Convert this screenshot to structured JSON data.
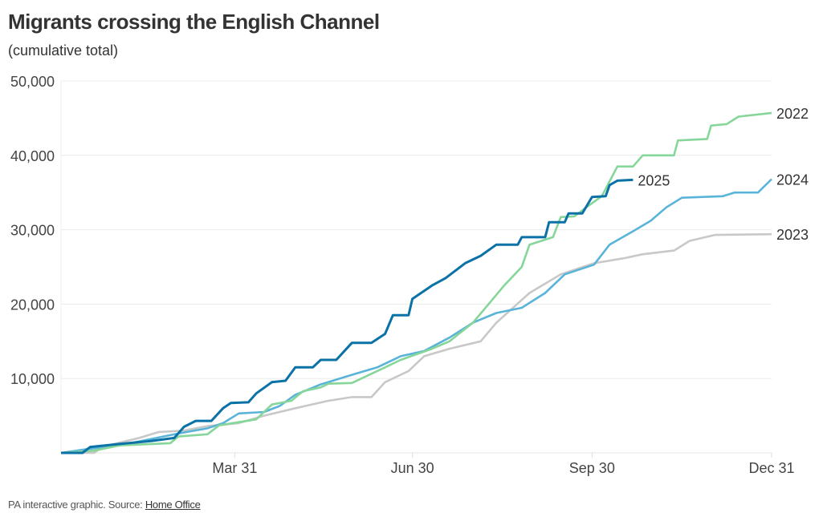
{
  "header": {
    "title": "Migrants crossing the English Channel",
    "subtitle": "(cumulative total)"
  },
  "footer": {
    "text": "PA interactive graphic. Source: ",
    "link": "Home Office"
  },
  "chart_data": {
    "type": "line",
    "ylim": [
      0,
      50000
    ],
    "xlim": [
      "01-01",
      "12-31"
    ],
    "grid": true,
    "yticks": [
      {
        "v": 10000,
        "label": "10,000"
      },
      {
        "v": 20000,
        "label": "20,000"
      },
      {
        "v": 30000,
        "label": "30,000"
      },
      {
        "v": 40000,
        "label": "40,000"
      },
      {
        "v": 50000,
        "label": "50,000"
      }
    ],
    "xticks": [
      {
        "v": "03-31",
        "label": "Mar 31"
      },
      {
        "v": "06-30",
        "label": "Jun 30"
      },
      {
        "v": "09-30",
        "label": "Sep 30"
      },
      {
        "v": "12-31",
        "label": "Dec 31"
      }
    ],
    "series": [
      {
        "name": "2023",
        "color": "#c8c8c8",
        "points": [
          [
            "01-01",
            0
          ],
          [
            "01-18",
            0
          ],
          [
            "01-22",
            800
          ],
          [
            "02-10",
            2000
          ],
          [
            "02-20",
            2800
          ],
          [
            "03-05",
            3000
          ],
          [
            "03-17",
            3600
          ],
          [
            "04-02",
            4000
          ],
          [
            "04-15",
            5000
          ],
          [
            "05-01",
            6000
          ],
          [
            "05-18",
            7000
          ],
          [
            "05-30",
            7500
          ],
          [
            "06-09",
            7500
          ],
          [
            "06-16",
            9500
          ],
          [
            "06-28",
            11000
          ],
          [
            "07-06",
            13000
          ],
          [
            "07-19",
            14000
          ],
          [
            "08-04",
            15000
          ],
          [
            "08-12",
            17500
          ],
          [
            "08-29",
            21500
          ],
          [
            "09-14",
            24000
          ],
          [
            "10-01",
            25500
          ],
          [
            "10-17",
            26200
          ],
          [
            "10-26",
            26700
          ],
          [
            "11-11",
            27200
          ],
          [
            "11-19",
            28500
          ],
          [
            "12-02",
            29300
          ],
          [
            "12-31",
            29400
          ]
        ]
      },
      {
        "name": "2024",
        "color": "#5ab4d9",
        "points": [
          [
            "01-01",
            0
          ],
          [
            "01-14",
            500
          ],
          [
            "01-31",
            1000
          ],
          [
            "03-02",
            2600
          ],
          [
            "03-17",
            3300
          ],
          [
            "03-25",
            4000
          ],
          [
            "04-02",
            5300
          ],
          [
            "04-15",
            5500
          ],
          [
            "04-23",
            6300
          ],
          [
            "05-01",
            7800
          ],
          [
            "05-14",
            9200
          ],
          [
            "05-30",
            10500
          ],
          [
            "06-12",
            11500
          ],
          [
            "06-24",
            13000
          ],
          [
            "07-06",
            13700
          ],
          [
            "07-19",
            15500
          ],
          [
            "07-31",
            17500
          ],
          [
            "08-12",
            18800
          ],
          [
            "08-25",
            19500
          ],
          [
            "09-06",
            21500
          ],
          [
            "09-16",
            24000
          ],
          [
            "10-01",
            25300
          ],
          [
            "10-09",
            28000
          ],
          [
            "10-21",
            29800
          ],
          [
            "10-30",
            31200
          ],
          [
            "11-07",
            33000
          ],
          [
            "11-15",
            34300
          ],
          [
            "12-06",
            34500
          ],
          [
            "12-12",
            35000
          ],
          [
            "12-24",
            35000
          ],
          [
            "12-31",
            36800
          ]
        ]
      },
      {
        "name": "2022",
        "color": "#86d69a",
        "points": [
          [
            "01-01",
            0
          ],
          [
            "01-18",
            300
          ],
          [
            "01-31",
            1000
          ],
          [
            "02-26",
            1300
          ],
          [
            "03-02",
            2200
          ],
          [
            "03-17",
            2500
          ],
          [
            "03-23",
            3700
          ],
          [
            "04-11",
            4500
          ],
          [
            "04-19",
            6500
          ],
          [
            "04-29",
            7000
          ],
          [
            "05-05",
            8300
          ],
          [
            "05-14",
            8800
          ],
          [
            "05-18",
            9300
          ],
          [
            "05-30",
            9400
          ],
          [
            "06-16",
            11500
          ],
          [
            "06-24",
            12500
          ],
          [
            "07-10",
            14000
          ],
          [
            "07-19",
            15000
          ],
          [
            "07-31",
            17500
          ],
          [
            "08-08",
            20000
          ],
          [
            "08-16",
            22500
          ],
          [
            "08-25",
            25000
          ],
          [
            "08-29",
            28000
          ],
          [
            "09-10",
            29000
          ],
          [
            "09-14",
            31700
          ],
          [
            "09-21",
            31800
          ],
          [
            "09-27",
            33000
          ],
          [
            "10-05",
            34500
          ],
          [
            "10-13",
            38500
          ],
          [
            "10-21",
            38500
          ],
          [
            "10-26",
            40000
          ],
          [
            "11-11",
            40000
          ],
          [
            "11-13",
            42000
          ],
          [
            "11-28",
            42200
          ],
          [
            "11-30",
            44000
          ],
          [
            "12-08",
            44200
          ],
          [
            "12-14",
            45200
          ],
          [
            "12-31",
            45700
          ]
        ]
      },
      {
        "name": "2025",
        "color": "#0a72a6",
        "points": [
          [
            "01-01",
            0
          ],
          [
            "01-12",
            0
          ],
          [
            "01-16",
            800
          ],
          [
            "01-31",
            1200
          ],
          [
            "02-16",
            1600
          ],
          [
            "02-28",
            2000
          ],
          [
            "03-05",
            3500
          ],
          [
            "03-11",
            4300
          ],
          [
            "03-19",
            4300
          ],
          [
            "03-25",
            6000
          ],
          [
            "03-29",
            6700
          ],
          [
            "04-07",
            6800
          ],
          [
            "04-11",
            8000
          ],
          [
            "04-19",
            9500
          ],
          [
            "04-26",
            9700
          ],
          [
            "05-01",
            11500
          ],
          [
            "05-10",
            11500
          ],
          [
            "05-14",
            12500
          ],
          [
            "05-22",
            12500
          ],
          [
            "05-30",
            14800
          ],
          [
            "06-09",
            14800
          ],
          [
            "06-16",
            16000
          ],
          [
            "06-20",
            18500
          ],
          [
            "06-28",
            18500
          ],
          [
            "06-30",
            20700
          ],
          [
            "07-10",
            22500
          ],
          [
            "07-17",
            23500
          ],
          [
            "07-27",
            25500
          ],
          [
            "08-04",
            26500
          ],
          [
            "08-12",
            28000
          ],
          [
            "08-23",
            28000
          ],
          [
            "08-25",
            29000
          ],
          [
            "09-06",
            29000
          ],
          [
            "09-08",
            31000
          ],
          [
            "09-16",
            31000
          ],
          [
            "09-18",
            32200
          ],
          [
            "09-25",
            32200
          ],
          [
            "09-30",
            34400
          ],
          [
            "10-07",
            34500
          ],
          [
            "10-09",
            36000
          ],
          [
            "10-13",
            36600
          ],
          [
            "10-21",
            36700
          ]
        ]
      }
    ]
  }
}
